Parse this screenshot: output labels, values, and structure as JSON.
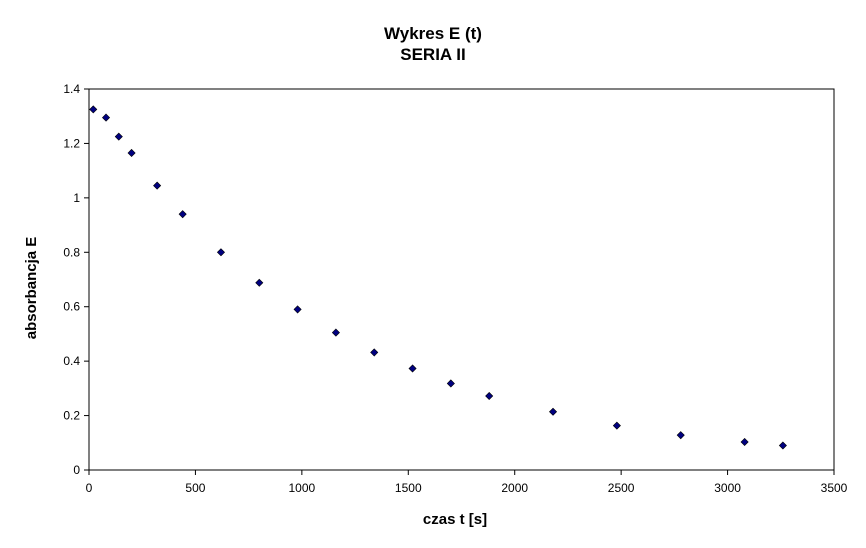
{
  "chart_data": {
    "type": "scatter",
    "title": "Wykres E (t)",
    "subtitle": "SERIA II",
    "xlabel": "czas t [s]",
    "ylabel": "absorbancja E",
    "xlim": [
      0,
      3500
    ],
    "ylim": [
      0,
      1.4
    ],
    "x_ticks": [
      0,
      500,
      1000,
      1500,
      2000,
      2500,
      3000,
      3500
    ],
    "y_ticks": [
      0,
      0.2,
      0.4,
      0.6,
      0.8,
      1,
      1.2,
      1.4
    ],
    "grid": false,
    "legend": "none",
    "marker": "diamond",
    "marker_color": "#000080",
    "series": [
      {
        "x": [
          20,
          80,
          140,
          200,
          320,
          440,
          620,
          800,
          980,
          1160,
          1340,
          1520,
          1700,
          1880,
          2180,
          2480,
          2780,
          3080,
          3260
        ],
        "y": [
          1.325,
          1.295,
          1.225,
          1.165,
          1.045,
          0.94,
          0.8,
          0.688,
          0.59,
          0.505,
          0.432,
          0.373,
          0.318,
          0.272,
          0.214,
          0.163,
          0.128,
          0.103,
          0.09
        ]
      }
    ]
  }
}
